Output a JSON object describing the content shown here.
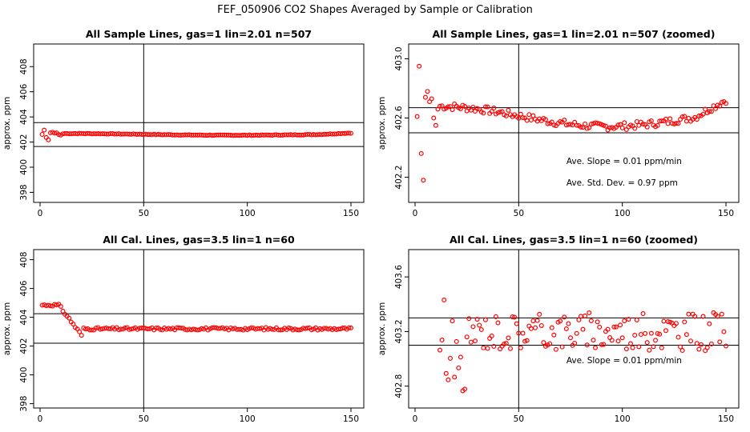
{
  "page_title": "FEF_050906  CO2 Shapes Averaged by Sample or Calibration",
  "colors": {
    "points": "#ff0000",
    "lines": "#000000",
    "axis": "#000000"
  },
  "chart_data": [
    {
      "type": "scatter",
      "title": "All Sample Lines, gas=1 lin=2.01 n=507",
      "ylabel": "approx. ppm",
      "xlim": [
        0,
        150
      ],
      "ylim": [
        397.2,
        409.8
      ],
      "xticks": [
        0,
        50,
        100,
        150
      ],
      "yticks": [
        398,
        400,
        402,
        404,
        406,
        408
      ],
      "ytick_labels": [
        "398",
        "400",
        "402",
        "404",
        "406",
        "408"
      ],
      "hlines": [
        403.55,
        401.65
      ],
      "vline": 50,
      "annotations": [],
      "series": [
        {
          "name": "samples",
          "kind": "sample",
          "n": 150,
          "base": 402.6,
          "amp": 0.25,
          "scale": 1
        }
      ]
    },
    {
      "type": "scatter",
      "title": "All Sample Lines, gas=1 lin=2.01 n=507 (zoomed)",
      "ylabel": "approx. ppm",
      "xlim": [
        0,
        150
      ],
      "ylim": [
        402.03,
        403.1
      ],
      "xticks": [
        0,
        50,
        100,
        150
      ],
      "yticks": [
        402.2,
        402.6,
        403.0
      ],
      "ytick_labels": [
        "402.2",
        "402.6",
        "403.0"
      ],
      "hlines": [
        402.67,
        402.5
      ],
      "vline": 50,
      "annotations": [
        "Ave. Slope =  0.01  ppm/min",
        "Ave. Std. Dev. =  0.97  ppm"
      ],
      "series": [
        {
          "name": "samples",
          "kind": "sample",
          "n": 150,
          "base": 402.6,
          "amp": 0.25,
          "scale": 1
        }
      ]
    },
    {
      "type": "scatter",
      "title": "All Cal. Lines, gas=3.5 lin=1 n=60",
      "ylabel": "approx. ppm",
      "xlim": [
        0,
        150
      ],
      "ylim": [
        397.7,
        408.7
      ],
      "xticks": [
        0,
        50,
        100,
        150
      ],
      "yticks": [
        398,
        400,
        402,
        404,
        406,
        408
      ],
      "ytick_labels": [
        "398",
        "400",
        "402",
        "404",
        "406",
        "408"
      ],
      "hlines": [
        404.25,
        402.2
      ],
      "vline": 50,
      "annotations": [],
      "series": [
        {
          "name": "calibration",
          "kind": "cal",
          "n": 150,
          "base": 403.2,
          "amp": 0.4,
          "scale": 1
        }
      ]
    },
    {
      "type": "scatter",
      "title": "All Cal. Lines, gas=3.5 lin=1 n=60 (zoomed)",
      "ylabel": "approx. ppm",
      "xlim": [
        0,
        150
      ],
      "ylim": [
        402.64,
        403.8
      ],
      "xticks": [
        0,
        50,
        100,
        150
      ],
      "yticks": [
        402.8,
        403.2,
        403.6
      ],
      "ytick_labels": [
        "402.8",
        "403.2",
        "403.6"
      ],
      "hlines": [
        403.3,
        403.1
      ],
      "vline": 50,
      "annotations": [
        "Ave. Slope =  0.01  ppm/min"
      ],
      "series": [
        {
          "name": "calibration",
          "kind": "calzoom",
          "n": 150,
          "base": 403.2,
          "amp": 0.4,
          "scale": 1
        }
      ]
    }
  ]
}
